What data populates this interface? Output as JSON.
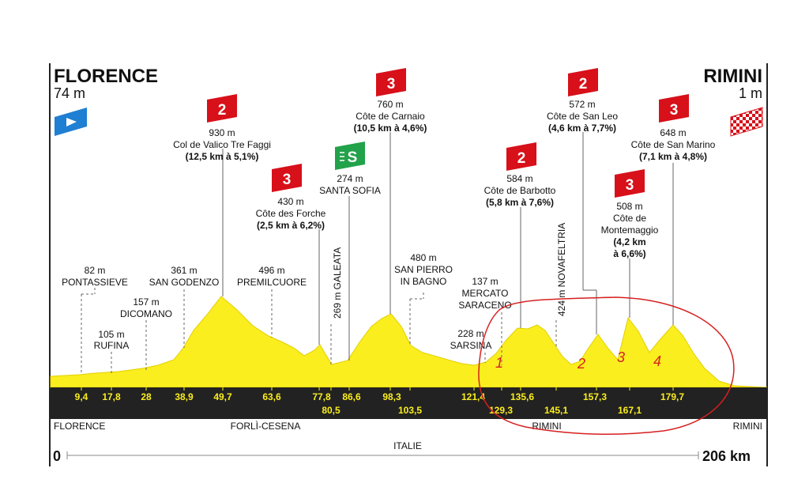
{
  "start": {
    "city": "FLORENCE",
    "altitude": "74 m",
    "flag_icon": "start-flag-icon"
  },
  "finish": {
    "city": "RIMINI",
    "altitude": "1 m",
    "flag_icon": "finish-flag-icon"
  },
  "climbs": [
    {
      "category": "2",
      "color": "#d7101a",
      "altitude": "930 m",
      "name": "Col de Valico Tre Faggi",
      "detail": "(12,5 km à 5,1%)"
    },
    {
      "category": "3",
      "color": "#d7101a",
      "altitude": "430 m",
      "name": "Côte des Forche",
      "detail": "(2,5 km à 6,2%)"
    },
    {
      "category": "S",
      "color": "#22a24a",
      "altitude": "274 m",
      "name": "SANTA SOFIA",
      "detail": ""
    },
    {
      "category": "3",
      "color": "#d7101a",
      "altitude": "760 m",
      "name": "Côte de Carnaio",
      "detail": "(10,5 km à 4,6%)"
    },
    {
      "category": "2",
      "color": "#d7101a",
      "altitude": "584 m",
      "name": "Côte de Barbotto",
      "detail": "(5,8 km à 7,6%)"
    },
    {
      "category": "2",
      "color": "#d7101a",
      "altitude": "572 m",
      "name": "Côte de San Leo",
      "detail": "(4,6 km à 7,7%)"
    },
    {
      "category": "3",
      "color": "#d7101a",
      "altitude": "508 m",
      "name_lines": [
        "Côte de",
        "Montemaggio"
      ],
      "detail_lines": [
        "(4,2 km",
        "à 6,6%)"
      ]
    },
    {
      "category": "3",
      "color": "#d7101a",
      "altitude": "648 m",
      "name": "Côte de San Marino",
      "detail": "(7,1 km à 4,8%)"
    }
  ],
  "places": [
    {
      "altitude": "82 m",
      "name": "PONTASSIEVE"
    },
    {
      "altitude": "105 m",
      "name": "RUFINA"
    },
    {
      "altitude": "157 m",
      "name": "DICOMANO"
    },
    {
      "altitude": "361 m",
      "name": "SAN GODENZO"
    },
    {
      "altitude": "496 m",
      "name": "PREMILCUORE"
    },
    {
      "label": "269 m GALEATA"
    },
    {
      "altitude": "480 m",
      "name_lines": [
        "SAN PIERRO",
        "IN BAGNO"
      ]
    },
    {
      "altitude": "137 m",
      "name_lines": [
        "MERCATO",
        "SARACENO"
      ]
    },
    {
      "altitude": "228 m",
      "name": "SARSINA"
    },
    {
      "label": "424 m NOVAFELTRIA"
    }
  ],
  "km_markers": [
    "9,4",
    "17,8",
    "28",
    "38,9",
    "49,7",
    "63,6",
    "77,8",
    "80,5",
    "86,6",
    "98,3",
    "103,5",
    "121,4",
    "129,3",
    "135,6",
    "145,1",
    "157,3",
    "167,1",
    "179,7"
  ],
  "regions": {
    "left": "FLORENCE",
    "center": "FORLÌ-CESENA",
    "right_mid": "RIMINI",
    "right": "RIMINI",
    "country": "ITALIE"
  },
  "distance": {
    "start": "0",
    "end": "206 km"
  },
  "annotations": [
    "1",
    "2",
    "3",
    "4"
  ],
  "colors": {
    "profile": "#fbee1e",
    "profile_edge": "#e2cf00",
    "band": "#222222",
    "annotation": "#d62020",
    "marker_red": "#d7101a",
    "marker_green": "#22a24a"
  }
}
